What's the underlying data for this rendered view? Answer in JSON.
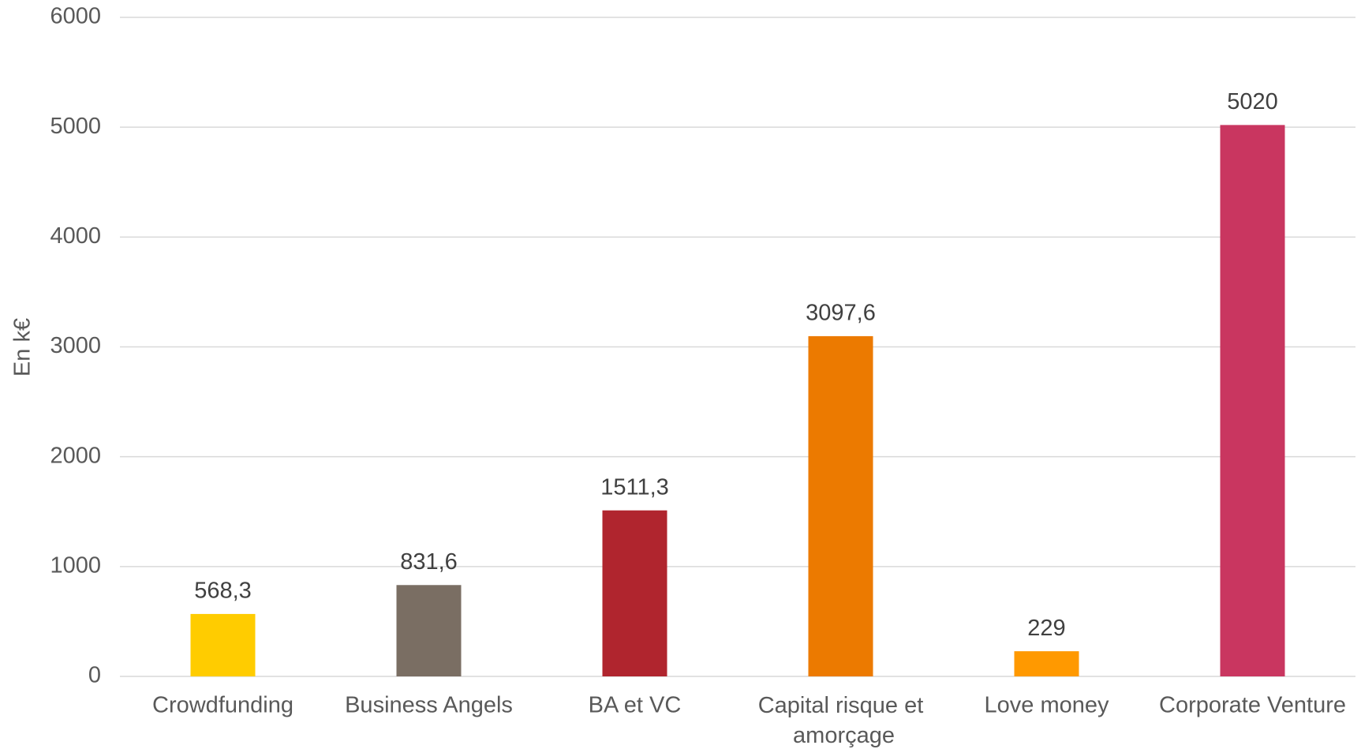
{
  "chart_data": {
    "type": "bar",
    "y_label": "En k€",
    "categories": [
      "Crowdfunding",
      "Business Angels",
      "BA et VC",
      "Capital risque et amorçage",
      "Love money",
      "Corporate Venture"
    ],
    "values": [
      568.3,
      831.6,
      1511.3,
      3097.6,
      229,
      5020
    ],
    "value_labels": [
      "568,3",
      "831,6",
      "1511,3",
      "3097,6",
      "229",
      "5020"
    ],
    "colors": [
      "#ffcc00",
      "#7a6e63",
      "#b0252e",
      "#ec7a00",
      "#ff9900",
      "#c93660"
    ],
    "ylim": [
      0,
      6000
    ],
    "yticks": [
      0,
      1000,
      2000,
      3000,
      4000,
      5000,
      6000
    ],
    "grid": true
  }
}
